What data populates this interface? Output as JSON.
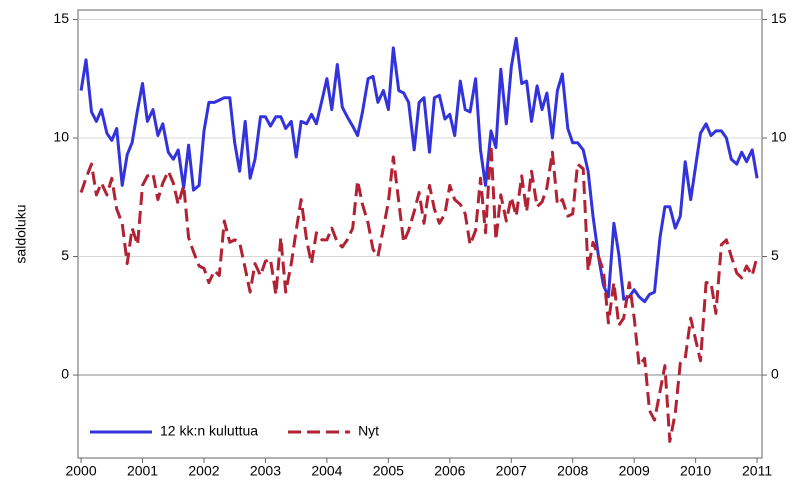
{
  "chart_data": {
    "type": "line",
    "y_label": "saldoluku",
    "x": [
      2000,
      2000.08,
      2000.17,
      2000.25,
      2000.33,
      2000.42,
      2000.5,
      2000.58,
      2000.67,
      2000.75,
      2000.83,
      2000.92,
      2001,
      2001.08,
      2001.17,
      2001.25,
      2001.33,
      2001.42,
      2001.5,
      2001.58,
      2001.67,
      2001.75,
      2001.83,
      2001.92,
      2002,
      2002.08,
      2002.17,
      2002.25,
      2002.33,
      2002.42,
      2002.5,
      2002.58,
      2002.67,
      2002.75,
      2002.83,
      2002.92,
      2003,
      2003.08,
      2003.17,
      2003.25,
      2003.33,
      2003.42,
      2003.5,
      2003.58,
      2003.67,
      2003.75,
      2003.83,
      2003.92,
      2004,
      2004.08,
      2004.17,
      2004.25,
      2004.33,
      2004.42,
      2004.5,
      2004.58,
      2004.67,
      2004.75,
      2004.83,
      2004.92,
      2005,
      2005.08,
      2005.17,
      2005.25,
      2005.33,
      2005.42,
      2005.5,
      2005.58,
      2005.67,
      2005.75,
      2005.83,
      2005.92,
      2006,
      2006.08,
      2006.17,
      2006.25,
      2006.33,
      2006.42,
      2006.5,
      2006.58,
      2006.67,
      2006.75,
      2006.83,
      2006.92,
      2007,
      2007.08,
      2007.17,
      2007.25,
      2007.33,
      2007.42,
      2007.5,
      2007.58,
      2007.67,
      2007.75,
      2007.83,
      2007.92,
      2008,
      2008.08,
      2008.17,
      2008.25,
      2008.33,
      2008.42,
      2008.5,
      2008.58,
      2008.67,
      2008.75,
      2008.83,
      2008.92,
      2009,
      2009.08,
      2009.17,
      2009.25,
      2009.33,
      2009.42,
      2009.5,
      2009.58,
      2009.67,
      2009.75,
      2009.83,
      2009.92,
      2010,
      2010.08,
      2010.17,
      2010.25,
      2010.33,
      2010.42,
      2010.5,
      2010.58,
      2010.67,
      2010.75,
      2010.83,
      2010.92,
      2011
    ],
    "series": [
      {
        "name": "12 kk:n kuluttua",
        "color": "#3333dd",
        "dashed": false,
        "values": [
          12,
          13.3,
          11.1,
          10.7,
          11.2,
          10.2,
          9.9,
          10.4,
          8.0,
          9.3,
          9.8,
          11.2,
          12.3,
          10.7,
          11.2,
          10.1,
          10.6,
          9.4,
          9.1,
          9.5,
          7.9,
          9.7,
          7.8,
          8.0,
          10.3,
          11.5,
          11.5,
          11.6,
          11.7,
          11.7,
          9.8,
          8.6,
          10.7,
          8.3,
          9.1,
          10.9,
          10.9,
          10.5,
          10.9,
          10.9,
          10.4,
          10.7,
          9.2,
          10.7,
          10.6,
          11.0,
          10.6,
          11.6,
          12.5,
          11.2,
          13.1,
          11.3,
          10.9,
          10.5,
          10.1,
          11.1,
          12.5,
          12.6,
          11.5,
          12.0,
          11.2,
          13.8,
          12.0,
          11.9,
          11.5,
          9.5,
          11.5,
          11.7,
          9.4,
          11.7,
          11.8,
          10.8,
          11.0,
          10.1,
          12.4,
          11.2,
          11.1,
          12.5,
          9.5,
          8.0,
          10.3,
          9.6,
          12.9,
          10.6,
          13.0,
          14.2,
          12.3,
          12.4,
          10.7,
          12.2,
          11.2,
          11.9,
          10.0,
          12.0,
          12.7,
          10.4,
          9.8,
          9.8,
          9.5,
          8.6,
          6.7,
          5.0,
          3.8,
          3.3,
          6.4,
          5.1,
          3.2,
          3.3,
          3.6,
          3.3,
          3.1,
          3.4,
          3.5,
          5.8,
          7.1,
          7.1,
          6.2,
          6.7,
          9.0,
          7.4,
          8.8,
          10.2,
          10.6,
          10.1,
          10.3,
          10.3,
          10.0,
          9.1,
          8.9,
          9.4,
          9.0,
          9.5,
          8.3
        ]
      },
      {
        "name": "Nyt",
        "color": "#b22234",
        "dashed": true,
        "values": [
          7.7,
          8.3,
          8.9,
          7.6,
          8.1,
          7.6,
          8.3,
          7.0,
          6.4,
          4.7,
          6.2,
          5.5,
          8.0,
          8.4,
          8.5,
          7.4,
          8.1,
          8.6,
          8.1,
          7.2,
          8.0,
          5.8,
          5.2,
          4.6,
          4.5,
          3.9,
          4.4,
          4.2,
          6.5,
          5.6,
          5.7,
          5.6,
          4.5,
          3.5,
          4.7,
          4.2,
          4.8,
          4.9,
          3.4,
          5.8,
          3.5,
          4.7,
          6.1,
          7.4,
          5.7,
          4.7,
          6.0,
          5.7,
          5.7,
          6.2,
          5.6,
          5.4,
          5.7,
          6.2,
          8.2,
          7.2,
          6.4,
          5.3,
          5.0,
          6.2,
          7.3,
          9.2,
          7.3,
          5.6,
          6.1,
          6.9,
          7.7,
          6.4,
          8.0,
          7.0,
          6.4,
          6.8,
          8.0,
          7.4,
          7.2,
          6.8,
          5.5,
          6.1,
          8.3,
          6.0,
          9.7,
          5.7,
          7.6,
          6.5,
          7.5,
          6.7,
          8.4,
          6.9,
          8.6,
          7.1,
          7.3,
          7.9,
          9.4,
          7.2,
          7.4,
          6.7,
          6.8,
          8.9,
          8.7,
          4.4,
          5.6,
          5.0,
          4.4,
          2.2,
          3.9,
          2.1,
          2.4,
          3.9,
          2.4,
          0.4,
          0.7,
          -1.5,
          -1.9,
          -0.7,
          0.4,
          -2.8,
          -1.6,
          0.5,
          0.7,
          2.4,
          1.5,
          0.6,
          3.9,
          3.9,
          2.6,
          5.5,
          5.7,
          5.0,
          4.3,
          4.1,
          4.6,
          4.2,
          5.0
        ]
      }
    ],
    "xlim": [
      1999.95,
      2011.08
    ],
    "xticks": [
      2000,
      2001,
      2002,
      2003,
      2004,
      2005,
      2006,
      2007,
      2008,
      2009,
      2010,
      2011
    ],
    "ylim": [
      -3.5,
      15.4
    ],
    "yticks": [
      0,
      5,
      10,
      15
    ],
    "y2lim": [
      -3.5,
      15.4
    ],
    "y2ticks": [
      0,
      5,
      10,
      15
    ],
    "grid": true,
    "legend": "lower left"
  }
}
